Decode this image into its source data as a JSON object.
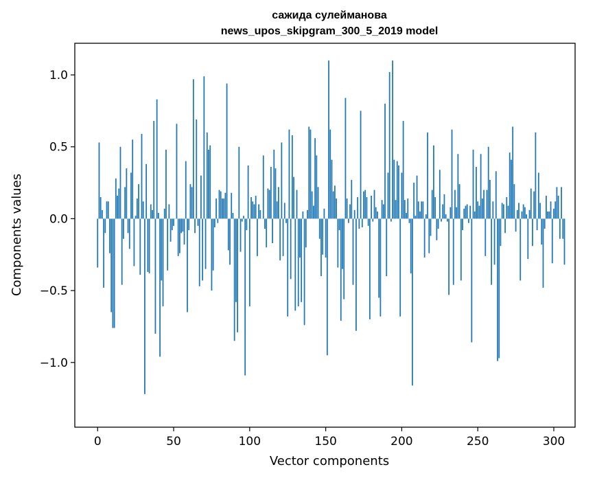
{
  "chart_data": {
    "type": "bar",
    "title_line1": "сажида сулейманова",
    "title_line2": "news_upos_skipgram_300_5_2019 model",
    "xlabel": "Vector components",
    "ylabel": "Components values",
    "xlim": [
      -15,
      314
    ],
    "ylim": [
      -1.45,
      1.22
    ],
    "xticks": [
      0,
      50,
      100,
      150,
      200,
      250,
      300
    ],
    "xtick_labels": [
      "0",
      "50",
      "100",
      "150",
      "200",
      "250",
      "300"
    ],
    "yticks": [
      -1.0,
      -0.5,
      0.0,
      0.5,
      1.0
    ],
    "ytick_labels": [
      "−1.0",
      "−0.5",
      "0.0",
      "0.5",
      "1.0"
    ],
    "color": "#1f77b4",
    "values": [
      -0.34,
      0.53,
      0.15,
      0.06,
      -0.48,
      -0.1,
      0.12,
      0.12,
      -0.24,
      -0.65,
      -0.76,
      -0.76,
      0.28,
      0.16,
      0.21,
      0.5,
      -0.46,
      -0.14,
      0.22,
      0.35,
      -0.1,
      -0.21,
      0.32,
      0.55,
      -0.33,
      0.02,
      0.14,
      0.24,
      -0.39,
      0.59,
      0.12,
      -1.22,
      0.38,
      -0.37,
      -0.38,
      0.1,
      0.06,
      0.68,
      -0.8,
      0.83,
      0.04,
      -0.96,
      -0.43,
      -0.61,
      0.07,
      0.48,
      -0.36,
      0.1,
      -0.16,
      -0.08,
      -0.05,
      0.0,
      0.66,
      -0.26,
      -0.24,
      -0.1,
      -0.09,
      -0.18,
      0.4,
      -0.65,
      -0.08,
      0.24,
      0.22,
      0.97,
      -0.1,
      0.69,
      -0.05,
      -0.47,
      0.3,
      -0.43,
      0.99,
      -0.35,
      0.6,
      0.48,
      0.51,
      -0.5,
      -0.36,
      -0.06,
      0.14,
      -0.03,
      0.2,
      0.19,
      0.14,
      0.14,
      0.18,
      0.94,
      -0.22,
      -0.32,
      0.18,
      0.04,
      -0.85,
      -0.58,
      -0.79,
      0.5,
      -0.23,
      -0.02,
      0.02,
      -1.09,
      -0.08,
      0.37,
      -0.61,
      0.15,
      0.12,
      0.1,
      0.16,
      -0.26,
      0.1,
      0.06,
      0.0,
      0.44,
      -0.07,
      -0.2,
      0.21,
      0.2,
      0.36,
      -0.17,
      0.48,
      0.35,
      0.12,
      0.22,
      -0.29,
      0.53,
      -0.26,
      0.11,
      -0.03,
      -0.68,
      0.62,
      -0.42,
      0.58,
      0.29,
      -0.64,
      0.2,
      -0.61,
      -0.27,
      -0.58,
      0.05,
      -0.74,
      -0.2,
      0.06,
      0.64,
      0.62,
      0.19,
      0.09,
      0.56,
      0.44,
      0.22,
      -0.14,
      -0.4,
      -0.25,
      0.07,
      -0.27,
      -0.95,
      1.1,
      0.62,
      0.41,
      0.19,
      0.23,
      0.14,
      -0.34,
      -0.08,
      -0.71,
      -0.35,
      -0.56,
      0.84,
      0.14,
      -0.03,
      0.1,
      0.27,
      -0.46,
      0.06,
      -0.78,
      0.15,
      -0.07,
      0.75,
      -0.06,
      0.19,
      0.2,
      0.15,
      -0.05,
      -0.7,
      0.16,
      -0.02,
      0.2,
      0.08,
      0.05,
      -0.55,
      -0.68,
      0.13,
      0.1,
      0.8,
      -0.4,
      0.32,
      1.02,
      -0.02,
      1.1,
      0.41,
      0.13,
      0.4,
      0.37,
      -0.68,
      0.32,
      0.68,
      0.13,
      0.04,
      0.14,
      -0.03,
      -0.38,
      -1.16,
      0.25,
      0.02,
      0.3,
      0.12,
      0.05,
      0.12,
      0.12,
      -0.27,
      0.03,
      0.6,
      -0.24,
      -0.12,
      0.2,
      0.51,
      0.15,
      -0.15,
      -0.07,
      0.34,
      -0.02,
      0.1,
      0.17,
      0.03,
      -0.02,
      -0.53,
      0.08,
      0.62,
      -0.46,
      0.2,
      0.08,
      0.45,
      0.24,
      -0.43,
      -0.08,
      0.07,
      0.09,
      0.1,
      -0.03,
      0.09,
      -0.86,
      0.48,
      0.05,
      0.36,
      0.12,
      0.09,
      0.45,
      0.14,
      0.2,
      -0.26,
      0.2,
      0.5,
      0.27,
      -0.46,
      0.12,
      -0.32,
      0.33,
      -0.99,
      -0.97,
      -0.19,
      0.11,
      0.1,
      -0.1,
      0.15,
      0.09,
      0.46,
      0.41,
      0.64,
      0.24,
      -0.09,
      0.06,
      0.11,
      -0.43,
      0.05,
      0.1,
      0.08,
      0.03,
      -0.28,
      0.06,
      0.21,
      -0.19,
      0.19,
      0.6,
      -0.08,
      0.32,
      0.11,
      -0.18,
      -0.48,
      -0.07,
      0.16,
      0.05,
      0.05,
      0.12,
      -0.31,
      0.07,
      0.12,
      0.22,
      0.16,
      -0.14,
      0.22,
      -0.14,
      -0.32
    ]
  }
}
